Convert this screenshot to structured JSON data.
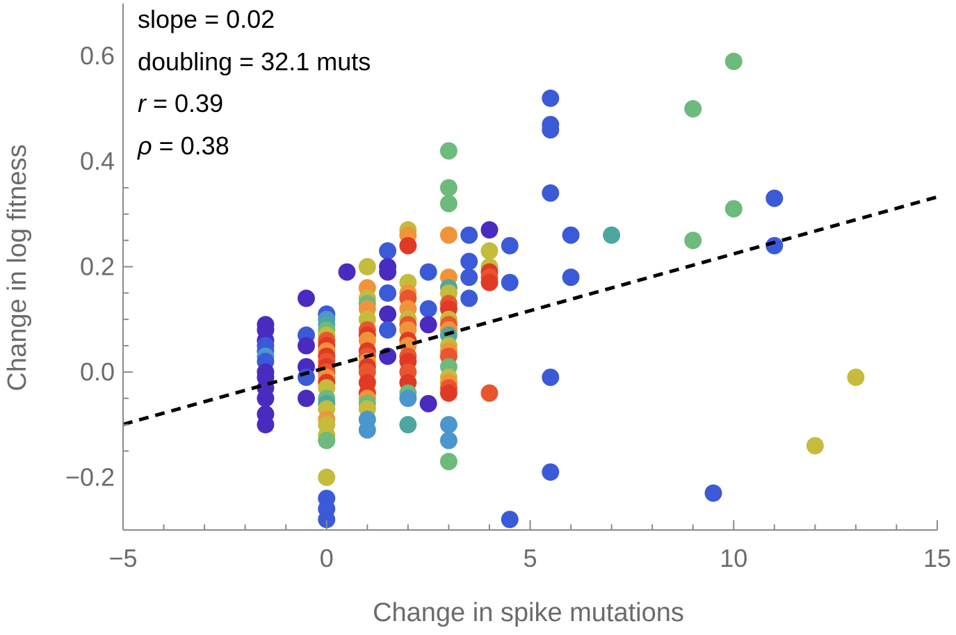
{
  "chart_data": {
    "type": "scatter",
    "title": "",
    "xlabel": "Change in spike mutations",
    "ylabel": "Change in log fitness",
    "xlim": [
      -5,
      15
    ],
    "ylim": [
      -0.3,
      0.7
    ],
    "xticks": [
      -5,
      0,
      5,
      10,
      15
    ],
    "xtick_labels": [
      "−5",
      "0",
      "5",
      "10",
      "15"
    ],
    "yticks": [
      -0.2,
      0.0,
      0.2,
      0.4,
      0.6
    ],
    "ytick_labels": [
      "−0.2",
      "0.0",
      "0.2",
      "0.4",
      "0.6"
    ],
    "annotations": [
      {
        "symbol": "",
        "text": "slope = 0.02"
      },
      {
        "symbol": "",
        "text": "doubling = 32.1 muts"
      },
      {
        "symbol": "r",
        "text": " = 0.39"
      },
      {
        "symbol": "ρ",
        "text": " = 0.38"
      }
    ],
    "fit_line": {
      "style": "dashed",
      "color": "#000000",
      "slope": 0.0216,
      "intercept": 0.0085
    },
    "colors": {
      "indigo": "#4a2bbf",
      "blue": "#3b5ad8",
      "lightblue": "#4b96cc",
      "teal": "#4ea6a0",
      "green": "#6cba7c",
      "olive": "#c5bb3c",
      "orange": "#f0943a",
      "redorange": "#e9562e",
      "red": "#e13a24"
    },
    "points": [
      {
        "x": -1.5,
        "y": 0.09,
        "c": "indigo"
      },
      {
        "x": -1.5,
        "y": 0.08,
        "c": "indigo"
      },
      {
        "x": -1.5,
        "y": 0.06,
        "c": "indigo"
      },
      {
        "x": -1.5,
        "y": 0.05,
        "c": "blue"
      },
      {
        "x": -1.5,
        "y": 0.04,
        "c": "blue"
      },
      {
        "x": -1.5,
        "y": 0.03,
        "c": "lightblue"
      },
      {
        "x": -1.5,
        "y": 0.02,
        "c": "blue"
      },
      {
        "x": -1.5,
        "y": 0.0,
        "c": "indigo"
      },
      {
        "x": -1.5,
        "y": -0.01,
        "c": "indigo"
      },
      {
        "x": -1.5,
        "y": -0.03,
        "c": "indigo"
      },
      {
        "x": -1.5,
        "y": -0.05,
        "c": "indigo"
      },
      {
        "x": -1.5,
        "y": -0.08,
        "c": "indigo"
      },
      {
        "x": -1.5,
        "y": -0.1,
        "c": "indigo"
      },
      {
        "x": -0.5,
        "y": 0.14,
        "c": "indigo"
      },
      {
        "x": -0.5,
        "y": 0.07,
        "c": "blue"
      },
      {
        "x": -0.5,
        "y": 0.05,
        "c": "indigo"
      },
      {
        "x": -0.5,
        "y": 0.01,
        "c": "indigo"
      },
      {
        "x": -0.5,
        "y": -0.01,
        "c": "blue"
      },
      {
        "x": -0.5,
        "y": -0.05,
        "c": "indigo"
      },
      {
        "x": 0,
        "y": 0.11,
        "c": "blue"
      },
      {
        "x": 0,
        "y": 0.1,
        "c": "lightblue"
      },
      {
        "x": 0,
        "y": 0.09,
        "c": "teal"
      },
      {
        "x": 0,
        "y": 0.08,
        "c": "green"
      },
      {
        "x": 0,
        "y": 0.07,
        "c": "olive"
      },
      {
        "x": 0,
        "y": 0.06,
        "c": "redorange"
      },
      {
        "x": 0,
        "y": 0.05,
        "c": "red"
      },
      {
        "x": 0,
        "y": 0.04,
        "c": "orange"
      },
      {
        "x": 0,
        "y": 0.03,
        "c": "red"
      },
      {
        "x": 0,
        "y": 0.02,
        "c": "redorange"
      },
      {
        "x": 0,
        "y": 0.01,
        "c": "red"
      },
      {
        "x": 0,
        "y": 0.0,
        "c": "redorange"
      },
      {
        "x": 0,
        "y": -0.01,
        "c": "orange"
      },
      {
        "x": 0,
        "y": -0.02,
        "c": "red"
      },
      {
        "x": 0,
        "y": -0.03,
        "c": "olive"
      },
      {
        "x": 0,
        "y": -0.05,
        "c": "green"
      },
      {
        "x": 0,
        "y": -0.06,
        "c": "teal"
      },
      {
        "x": 0,
        "y": -0.07,
        "c": "olive"
      },
      {
        "x": 0,
        "y": -0.09,
        "c": "orange"
      },
      {
        "x": 0,
        "y": -0.1,
        "c": "olive"
      },
      {
        "x": 0,
        "y": -0.12,
        "c": "olive"
      },
      {
        "x": 0,
        "y": -0.13,
        "c": "green"
      },
      {
        "x": 0,
        "y": -0.2,
        "c": "olive"
      },
      {
        "x": 0,
        "y": -0.24,
        "c": "blue"
      },
      {
        "x": 0,
        "y": -0.26,
        "c": "blue"
      },
      {
        "x": 0,
        "y": -0.28,
        "c": "blue"
      },
      {
        "x": 0.5,
        "y": 0.19,
        "c": "indigo"
      },
      {
        "x": 1,
        "y": 0.2,
        "c": "olive"
      },
      {
        "x": 1,
        "y": 0.16,
        "c": "orange"
      },
      {
        "x": 1,
        "y": 0.14,
        "c": "olive"
      },
      {
        "x": 1,
        "y": 0.13,
        "c": "green"
      },
      {
        "x": 1,
        "y": 0.12,
        "c": "orange"
      },
      {
        "x": 1,
        "y": 0.1,
        "c": "olive"
      },
      {
        "x": 1,
        "y": 0.08,
        "c": "redorange"
      },
      {
        "x": 1,
        "y": 0.07,
        "c": "red"
      },
      {
        "x": 1,
        "y": 0.06,
        "c": "orange"
      },
      {
        "x": 1,
        "y": 0.04,
        "c": "red"
      },
      {
        "x": 1,
        "y": 0.03,
        "c": "redorange"
      },
      {
        "x": 1,
        "y": 0.02,
        "c": "orange"
      },
      {
        "x": 1,
        "y": 0.01,
        "c": "red"
      },
      {
        "x": 1,
        "y": 0.0,
        "c": "redorange"
      },
      {
        "x": 1,
        "y": -0.02,
        "c": "red"
      },
      {
        "x": 1,
        "y": -0.04,
        "c": "red"
      },
      {
        "x": 1,
        "y": -0.05,
        "c": "orange"
      },
      {
        "x": 1,
        "y": -0.06,
        "c": "green"
      },
      {
        "x": 1,
        "y": -0.07,
        "c": "olive"
      },
      {
        "x": 1,
        "y": -0.09,
        "c": "lightblue"
      },
      {
        "x": 1,
        "y": -0.11,
        "c": "lightblue"
      },
      {
        "x": 1.5,
        "y": 0.23,
        "c": "blue"
      },
      {
        "x": 1.5,
        "y": 0.2,
        "c": "indigo"
      },
      {
        "x": 1.5,
        "y": 0.19,
        "c": "indigo"
      },
      {
        "x": 1.5,
        "y": 0.15,
        "c": "blue"
      },
      {
        "x": 1.5,
        "y": 0.11,
        "c": "indigo"
      },
      {
        "x": 1.5,
        "y": 0.08,
        "c": "blue"
      },
      {
        "x": 1.5,
        "y": 0.03,
        "c": "indigo"
      },
      {
        "x": 2,
        "y": 0.27,
        "c": "olive"
      },
      {
        "x": 2,
        "y": 0.26,
        "c": "orange"
      },
      {
        "x": 2,
        "y": 0.24,
        "c": "red"
      },
      {
        "x": 2,
        "y": 0.17,
        "c": "olive"
      },
      {
        "x": 2,
        "y": 0.15,
        "c": "orange"
      },
      {
        "x": 2,
        "y": 0.14,
        "c": "redorange"
      },
      {
        "x": 2,
        "y": 0.12,
        "c": "orange"
      },
      {
        "x": 2,
        "y": 0.1,
        "c": "olive"
      },
      {
        "x": 2,
        "y": 0.09,
        "c": "redorange"
      },
      {
        "x": 2,
        "y": 0.08,
        "c": "orange"
      },
      {
        "x": 2,
        "y": 0.06,
        "c": "red"
      },
      {
        "x": 2,
        "y": 0.05,
        "c": "orange"
      },
      {
        "x": 2,
        "y": 0.03,
        "c": "redorange"
      },
      {
        "x": 2,
        "y": 0.02,
        "c": "red"
      },
      {
        "x": 2,
        "y": 0.0,
        "c": "redorange"
      },
      {
        "x": 2,
        "y": -0.02,
        "c": "red"
      },
      {
        "x": 2,
        "y": -0.04,
        "c": "green"
      },
      {
        "x": 2,
        "y": -0.05,
        "c": "lightblue"
      },
      {
        "x": 2,
        "y": -0.1,
        "c": "teal"
      },
      {
        "x": 2.5,
        "y": 0.19,
        "c": "blue"
      },
      {
        "x": 2.5,
        "y": 0.12,
        "c": "blue"
      },
      {
        "x": 2.5,
        "y": 0.09,
        "c": "indigo"
      },
      {
        "x": 2.5,
        "y": -0.06,
        "c": "indigo"
      },
      {
        "x": 3,
        "y": 0.42,
        "c": "green"
      },
      {
        "x": 3,
        "y": 0.35,
        "c": "green"
      },
      {
        "x": 3,
        "y": 0.32,
        "c": "green"
      },
      {
        "x": 3,
        "y": 0.26,
        "c": "orange"
      },
      {
        "x": 3,
        "y": 0.18,
        "c": "orange"
      },
      {
        "x": 3,
        "y": 0.16,
        "c": "teal"
      },
      {
        "x": 3,
        "y": 0.15,
        "c": "olive"
      },
      {
        "x": 3,
        "y": 0.13,
        "c": "redorange"
      },
      {
        "x": 3,
        "y": 0.12,
        "c": "red"
      },
      {
        "x": 3,
        "y": 0.1,
        "c": "olive"
      },
      {
        "x": 3,
        "y": 0.09,
        "c": "redorange"
      },
      {
        "x": 3,
        "y": 0.08,
        "c": "orange"
      },
      {
        "x": 3,
        "y": 0.07,
        "c": "teal"
      },
      {
        "x": 3,
        "y": 0.05,
        "c": "olive"
      },
      {
        "x": 3,
        "y": 0.04,
        "c": "orange"
      },
      {
        "x": 3,
        "y": 0.03,
        "c": "redorange"
      },
      {
        "x": 3,
        "y": 0.01,
        "c": "green"
      },
      {
        "x": 3,
        "y": -0.01,
        "c": "olive"
      },
      {
        "x": 3,
        "y": -0.02,
        "c": "orange"
      },
      {
        "x": 3,
        "y": -0.03,
        "c": "redorange"
      },
      {
        "x": 3,
        "y": -0.04,
        "c": "red"
      },
      {
        "x": 3,
        "y": -0.1,
        "c": "lightblue"
      },
      {
        "x": 3,
        "y": -0.13,
        "c": "lightblue"
      },
      {
        "x": 3,
        "y": -0.17,
        "c": "green"
      },
      {
        "x": 3.5,
        "y": 0.26,
        "c": "blue"
      },
      {
        "x": 3.5,
        "y": 0.21,
        "c": "blue"
      },
      {
        "x": 3.5,
        "y": 0.18,
        "c": "blue"
      },
      {
        "x": 3.5,
        "y": 0.14,
        "c": "blue"
      },
      {
        "x": 4,
        "y": 0.27,
        "c": "indigo"
      },
      {
        "x": 4,
        "y": 0.23,
        "c": "olive"
      },
      {
        "x": 4,
        "y": 0.2,
        "c": "olive"
      },
      {
        "x": 4,
        "y": 0.19,
        "c": "red"
      },
      {
        "x": 4,
        "y": 0.18,
        "c": "redorange"
      },
      {
        "x": 4,
        "y": 0.17,
        "c": "red"
      },
      {
        "x": 4,
        "y": -0.04,
        "c": "redorange"
      },
      {
        "x": 4.5,
        "y": 0.24,
        "c": "blue"
      },
      {
        "x": 4.5,
        "y": 0.17,
        "c": "blue"
      },
      {
        "x": 4.5,
        "y": -0.28,
        "c": "blue"
      },
      {
        "x": 5.5,
        "y": 0.52,
        "c": "blue"
      },
      {
        "x": 5.5,
        "y": 0.47,
        "c": "blue"
      },
      {
        "x": 5.5,
        "y": 0.46,
        "c": "blue"
      },
      {
        "x": 5.5,
        "y": 0.34,
        "c": "blue"
      },
      {
        "x": 5.5,
        "y": -0.01,
        "c": "blue"
      },
      {
        "x": 5.5,
        "y": -0.19,
        "c": "blue"
      },
      {
        "x": 6,
        "y": 0.26,
        "c": "blue"
      },
      {
        "x": 6,
        "y": 0.18,
        "c": "blue"
      },
      {
        "x": 7,
        "y": 0.26,
        "c": "teal"
      },
      {
        "x": 9,
        "y": 0.5,
        "c": "green"
      },
      {
        "x": 9,
        "y": 0.25,
        "c": "green"
      },
      {
        "x": 9.5,
        "y": -0.23,
        "c": "blue"
      },
      {
        "x": 10,
        "y": 0.59,
        "c": "green"
      },
      {
        "x": 10,
        "y": 0.31,
        "c": "green"
      },
      {
        "x": 11,
        "y": 0.33,
        "c": "blue"
      },
      {
        "x": 11,
        "y": 0.24,
        "c": "blue"
      },
      {
        "x": 12,
        "y": -0.14,
        "c": "olive"
      },
      {
        "x": 13,
        "y": -0.01,
        "c": "olive"
      }
    ]
  }
}
